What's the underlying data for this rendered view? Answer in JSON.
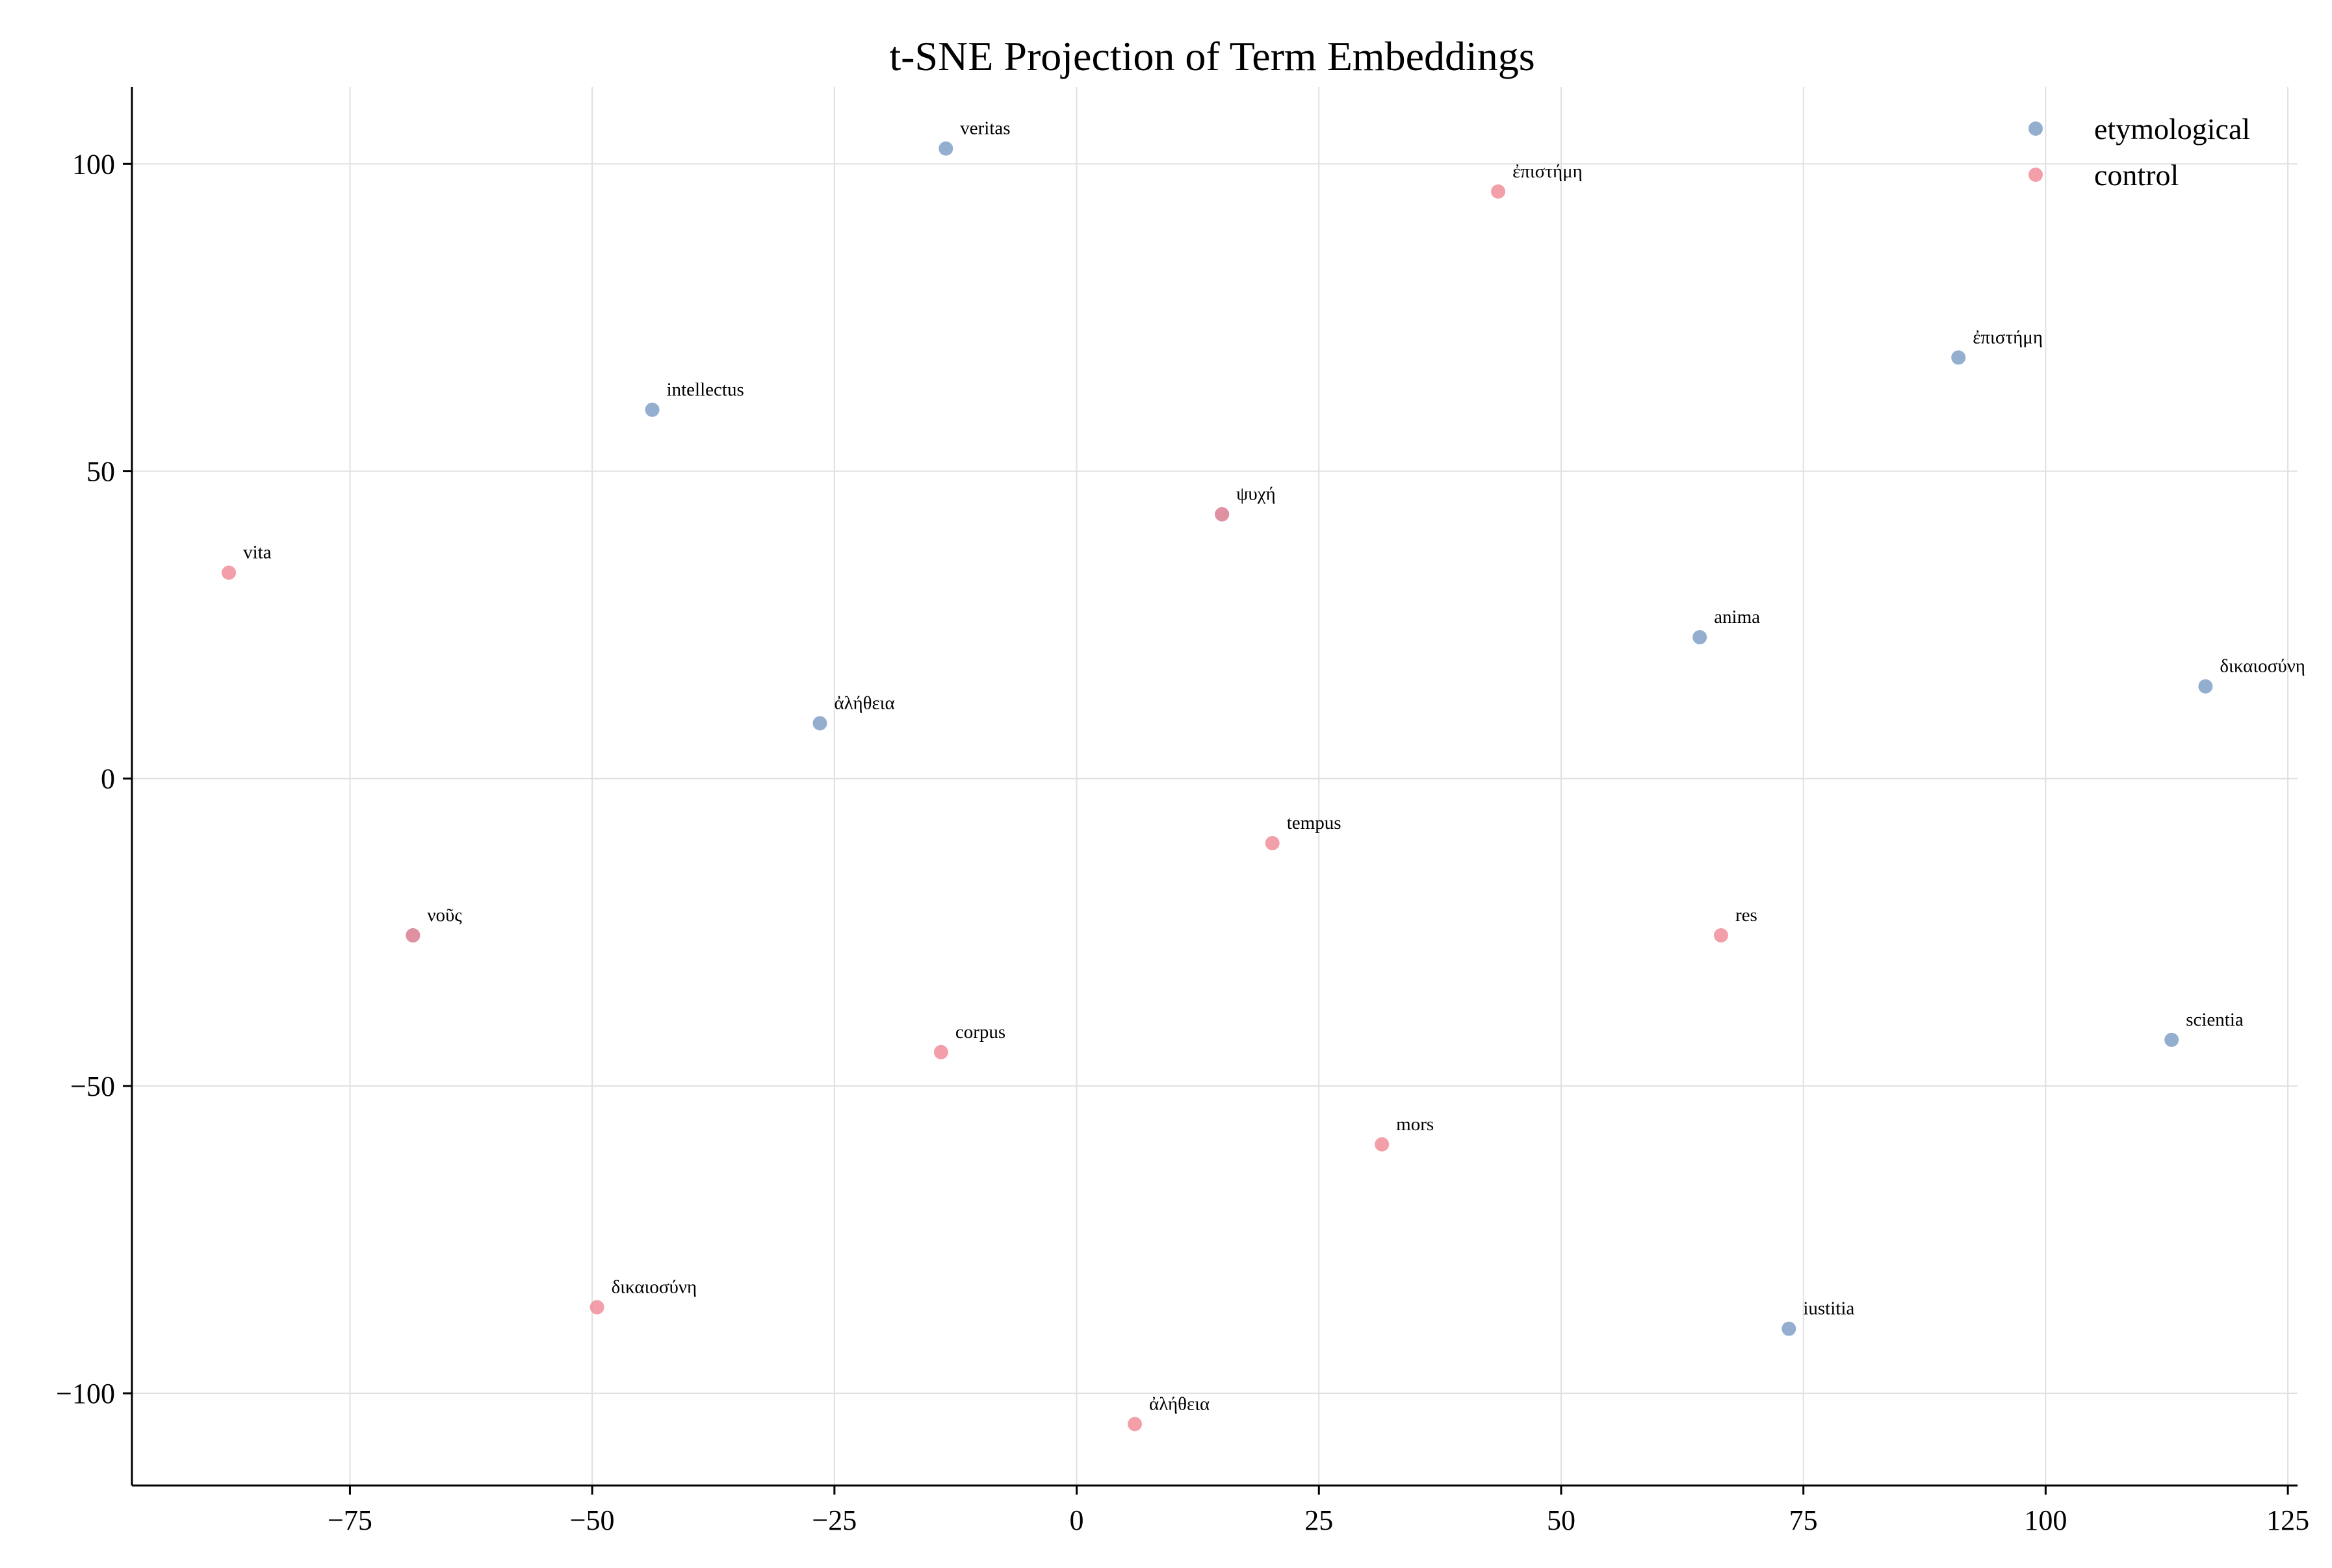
{
  "chart_data": {
    "type": "scatter",
    "title": "t-SNE Projection of Term Embeddings",
    "xlabel": "",
    "ylabel": "",
    "xlim": [
      -97.5,
      126
    ],
    "ylim": [
      -115,
      112.5
    ],
    "xticks": [
      -75,
      -50,
      -25,
      0,
      25,
      50,
      75,
      100,
      125
    ],
    "xtick_labels": [
      "−75",
      "−50",
      "−25",
      "0",
      "25",
      "50",
      "75",
      "100",
      "125"
    ],
    "yticks": [
      -100,
      -50,
      0,
      50,
      100
    ],
    "ytick_labels": [
      "−100",
      "−50",
      "0",
      "50",
      "100"
    ],
    "grid": true,
    "legend_position": "top-right",
    "series": [
      {
        "name": "etymological",
        "color": "#7b9cc4",
        "points": [
          {
            "x": -13.5,
            "y": 102.5,
            "label": "veritas"
          },
          {
            "x": -43.8,
            "y": 60,
            "label": "intellectus"
          },
          {
            "x": 15,
            "y": 43,
            "label": "ψυχή"
          },
          {
            "x": -26.5,
            "y": 9,
            "label": "ἀλήθεια"
          },
          {
            "x": -68.5,
            "y": -25.5,
            "label": "νοῦς"
          },
          {
            "x": 64.3,
            "y": 23,
            "label": "anima"
          },
          {
            "x": 91,
            "y": 68.5,
            "label": "ἐπιστήμη"
          },
          {
            "x": 116.5,
            "y": 15,
            "label": "δικαιοσύνη"
          },
          {
            "x": 113,
            "y": -42.5,
            "label": "scientia"
          },
          {
            "x": 73.5,
            "y": -89.5,
            "label": "iustitia"
          }
        ]
      },
      {
        "name": "control",
        "color": "#f08a96",
        "points": [
          {
            "x": 43.5,
            "y": 95.5,
            "label": "ἐπιστήμη"
          },
          {
            "x": -87.5,
            "y": 33.5,
            "label": "vita"
          },
          {
            "x": 15,
            "y": 43,
            "label": ""
          },
          {
            "x": 20.2,
            "y": -10.5,
            "label": "tempus"
          },
          {
            "x": 66.5,
            "y": -25.5,
            "label": "res"
          },
          {
            "x": -68.5,
            "y": -25.5,
            "label": ""
          },
          {
            "x": -14,
            "y": -44.5,
            "label": "corpus"
          },
          {
            "x": 31.5,
            "y": -59.5,
            "label": "mors"
          },
          {
            "x": -49.5,
            "y": -86,
            "label": "δικαιοσύνη"
          },
          {
            "x": 6,
            "y": -105,
            "label": "ἀλήθεια"
          }
        ]
      }
    ]
  }
}
